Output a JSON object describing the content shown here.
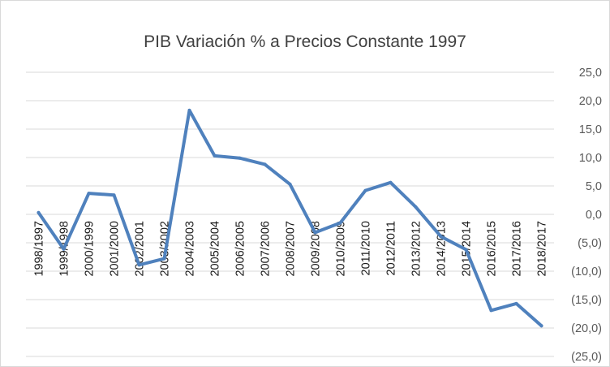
{
  "chart_data": {
    "type": "line",
    "title": "PIB Variación % a Precios Constante 1997",
    "xlabel": "",
    "ylabel": "",
    "ylim": [
      -25,
      25
    ],
    "y_axis_position": "right",
    "y_tick_values": [
      25,
      20,
      15,
      10,
      5,
      0,
      -5,
      -10,
      -15,
      -20,
      -25
    ],
    "y_tick_labels": [
      "25,0",
      "20,0",
      "15,0",
      "10,0",
      "5,0",
      "0,0",
      "(5,0)",
      "(10,0)",
      "(15,0)",
      "(20,0)",
      "(25,0)"
    ],
    "grid": "horizontal",
    "legend": "none",
    "categories": [
      "1998/1997",
      "1999/1998",
      "2000/1999",
      "2001/2000",
      "2002/2001",
      "2003/2002",
      "2004/2003",
      "2005/2004",
      "2006/2005",
      "2007/2006",
      "2008/2007",
      "2009/2008",
      "2010/2009",
      "2011/2010",
      "2012/2011",
      "2013/2012",
      "2014/2013",
      "2015/2014",
      "2016/2015",
      "2017/2016",
      "2018/2017"
    ],
    "series": [
      {
        "values": [
          0.3,
          -6.1,
          3.7,
          3.4,
          -8.9,
          -7.8,
          18.3,
          10.3,
          9.9,
          8.8,
          5.3,
          -3.2,
          -1.5,
          4.2,
          5.6,
          1.3,
          -3.9,
          -6.2,
          -16.9,
          -15.7,
          -19.6
        ],
        "color": "#4f81bd"
      }
    ]
  }
}
